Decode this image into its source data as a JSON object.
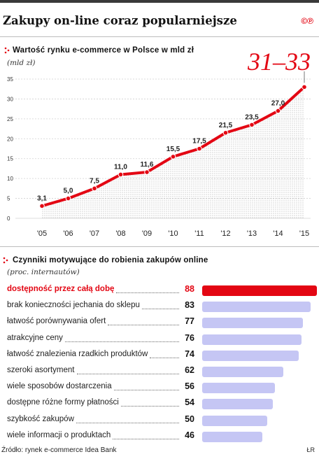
{
  "headline": "Zakupy on-line coraz popularniejsze",
  "brand": "©℗",
  "source": "Źródło: rynek e-commerce Idea Bank",
  "credit": "ŁR",
  "colors": {
    "accent": "#e30613",
    "bar": "#c5c6f4",
    "text": "#1a1a1a"
  },
  "chart_data": [
    {
      "type": "line",
      "title": "Wartość rynku e-commerce w Polsce w mld zł",
      "subtitle": "(mld zł)",
      "annotation": "31–33",
      "x": [
        "'05",
        "'06",
        "'07",
        "'08",
        "'09",
        "'10",
        "'11",
        "'12",
        "'13",
        "'14",
        "'15"
      ],
      "series": [
        {
          "values": [
            3.1,
            5.0,
            7.5,
            11.0,
            11.6,
            15.5,
            17.5,
            21.5,
            23.5,
            27.0,
            33.0
          ]
        }
      ],
      "data_labels": [
        "3,1",
        "5,0",
        "7,5",
        "11,0",
        "11,6",
        "15,5",
        "17,5",
        "21,5",
        "23,5",
        "27,0",
        ""
      ],
      "yticks": [
        "0",
        "5",
        "10",
        "15",
        "20",
        "25",
        "30",
        "35"
      ],
      "ylim": [
        0,
        35
      ],
      "grid": "horizontal",
      "area_fill": "dotted"
    },
    {
      "type": "bar",
      "orientation": "horizontal",
      "title": "Czynniki motywujące do robienia zakupów online",
      "subtitle": "(proc. internautów)",
      "categories": [
        "dostępność przez całą dobę",
        "brak konieczności jechania do sklepu",
        "łatwość porównywania ofert",
        "atrakcyjne ceny",
        "łatwość znalezienia rzadkich produktów",
        "szeroki asortyment",
        "wiele sposobów dostarczenia",
        "dostępne różne formy płatności",
        "szybkość zakupów",
        "wiele informacji o produktach"
      ],
      "values": [
        88,
        83,
        77,
        76,
        74,
        62,
        56,
        54,
        50,
        46
      ],
      "highlight_index": 0,
      "xlim": [
        0,
        88
      ]
    }
  ]
}
